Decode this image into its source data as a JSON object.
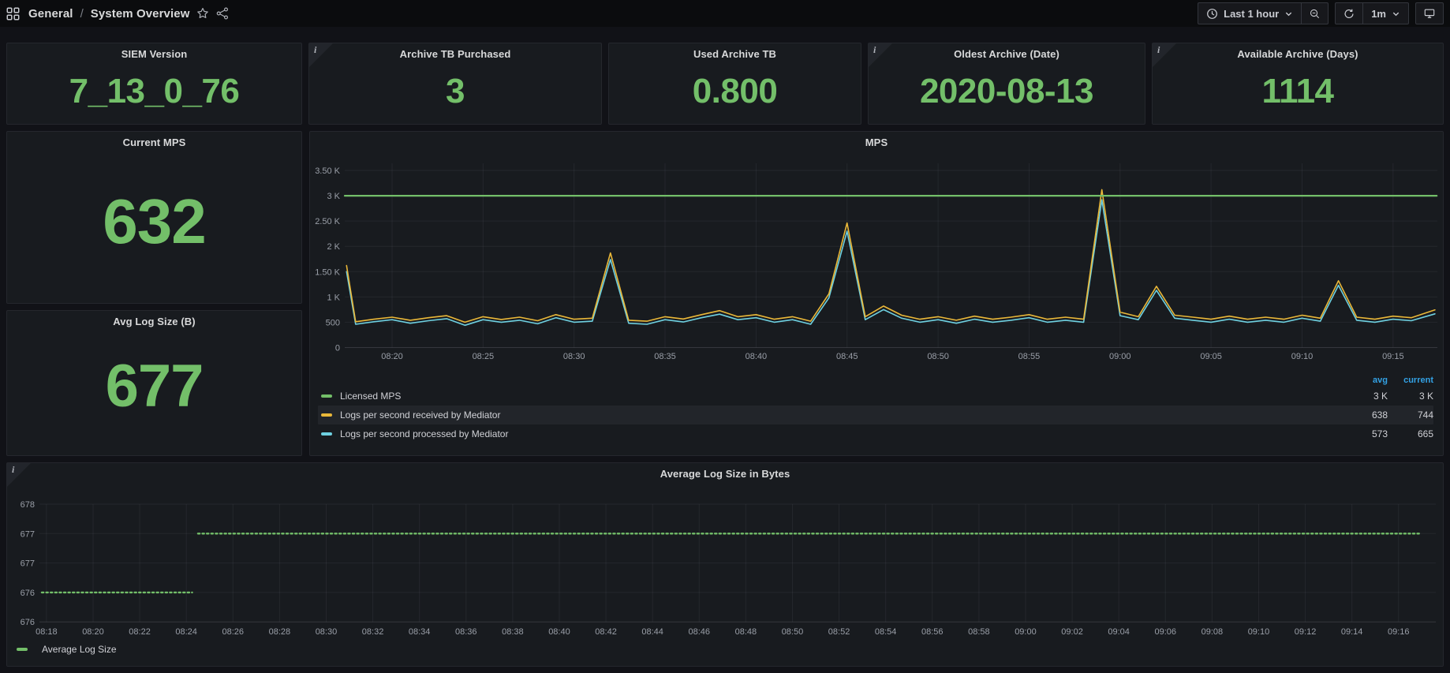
{
  "nav": {
    "breadcrumb": {
      "section": "General",
      "separator": "/",
      "page": "System Overview"
    },
    "controls": {
      "time_range": "Last 1 hour",
      "refresh_interval": "1m"
    }
  },
  "icons": {
    "info": "i"
  },
  "stats": [
    {
      "title": "SIEM Version",
      "value": "7_13_0_76",
      "info": false
    },
    {
      "title": "Archive TB Purchased",
      "value": "3",
      "info": true
    },
    {
      "title": "Used Archive TB",
      "value": "0.800",
      "info": false
    },
    {
      "title": "Oldest Archive (Date)",
      "value": "2020-08-13",
      "info": true
    },
    {
      "title": "Available Archive (Days)",
      "value": "1114",
      "info": true
    }
  ],
  "big_stats": {
    "current_mps": {
      "title": "Current MPS",
      "value": "632"
    },
    "avg_log_size": {
      "title": "Avg Log Size (B)",
      "value": "677"
    }
  },
  "colors": {
    "green": "#73bf69",
    "yellow": "#eab839",
    "cyan": "#6ed0e0",
    "legend_header_blue": "#33a2e5",
    "panel_bg": "#181b1f",
    "page_bg": "#111217"
  },
  "chart_data": [
    {
      "id": "mps",
      "type": "line",
      "title": "MPS",
      "time_domain": [
        "08:17",
        "09:17"
      ],
      "x_ticks": [
        "08:20",
        "08:25",
        "08:30",
        "08:35",
        "08:40",
        "08:45",
        "08:50",
        "08:55",
        "09:00",
        "09:05",
        "09:10",
        "09:15"
      ],
      "x_tick_start_min": 3,
      "x_tick_step_min": 5,
      "y_ticks": [
        "0",
        "500",
        "1 K",
        "1.50 K",
        "2 K",
        "2.50 K",
        "3 K",
        "3.50 K"
      ],
      "ylim": [
        0,
        3880
      ],
      "grid": true,
      "legend_position": "bottom",
      "legend_columns": [
        "avg",
        "current"
      ],
      "series": [
        {
          "name": "Licensed MPS",
          "color": "#73bf69",
          "width": 2.2,
          "avg": "3 K",
          "current": "3 K",
          "constant": 3000
        },
        {
          "name": "Logs per second received by Mediator",
          "color": "#eab839",
          "width": 1.6,
          "avg": "638",
          "current": "744",
          "highlight": true,
          "points": [
            [
              0.5,
              1620
            ],
            [
              1,
              510
            ],
            [
              2,
              560
            ],
            [
              3,
              600
            ],
            [
              4,
              540
            ],
            [
              5,
              590
            ],
            [
              6,
              630
            ],
            [
              7,
              500
            ],
            [
              8,
              610
            ],
            [
              9,
              555
            ],
            [
              10,
              600
            ],
            [
              11,
              530
            ],
            [
              12,
              650
            ],
            [
              13,
              560
            ],
            [
              14,
              580
            ],
            [
              15,
              1870
            ],
            [
              16,
              540
            ],
            [
              17,
              520
            ],
            [
              18,
              610
            ],
            [
              19,
              565
            ],
            [
              20,
              650
            ],
            [
              21,
              730
            ],
            [
              22,
              610
            ],
            [
              23,
              650
            ],
            [
              24,
              560
            ],
            [
              25,
              610
            ],
            [
              26,
              520
            ],
            [
              27,
              1060
            ],
            [
              28,
              2460
            ],
            [
              29,
              610
            ],
            [
              30,
              820
            ],
            [
              31,
              640
            ],
            [
              32,
              560
            ],
            [
              33,
              610
            ],
            [
              34,
              540
            ],
            [
              35,
              620
            ],
            [
              36,
              560
            ],
            [
              37,
              600
            ],
            [
              38,
              650
            ],
            [
              39,
              560
            ],
            [
              40,
              600
            ],
            [
              41,
              560
            ],
            [
              42,
              3120
            ],
            [
              43,
              700
            ],
            [
              44,
              610
            ],
            [
              45,
              1210
            ],
            [
              46,
              640
            ],
            [
              47,
              600
            ],
            [
              48,
              560
            ],
            [
              49,
              620
            ],
            [
              50,
              560
            ],
            [
              51,
              600
            ],
            [
              52,
              560
            ],
            [
              53,
              640
            ],
            [
              54,
              580
            ],
            [
              55,
              1320
            ],
            [
              56,
              600
            ],
            [
              57,
              560
            ],
            [
              58,
              620
            ],
            [
              59,
              590
            ],
            [
              60.3,
              744
            ]
          ]
        },
        {
          "name": "Logs per second processed by Mediator",
          "color": "#6ed0e0",
          "width": 1.6,
          "avg": "573",
          "current": "665",
          "points": [
            [
              0.5,
              1500
            ],
            [
              1,
              460
            ],
            [
              2,
              510
            ],
            [
              3,
              550
            ],
            [
              4,
              480
            ],
            [
              5,
              530
            ],
            [
              6,
              570
            ],
            [
              7,
              440
            ],
            [
              8,
              550
            ],
            [
              9,
              500
            ],
            [
              10,
              540
            ],
            [
              11,
              470
            ],
            [
              12,
              590
            ],
            [
              13,
              500
            ],
            [
              14,
              520
            ],
            [
              15,
              1740
            ],
            [
              16,
              480
            ],
            [
              17,
              460
            ],
            [
              18,
              550
            ],
            [
              19,
              505
            ],
            [
              20,
              590
            ],
            [
              21,
              660
            ],
            [
              22,
              550
            ],
            [
              23,
              590
            ],
            [
              24,
              500
            ],
            [
              25,
              550
            ],
            [
              26,
              460
            ],
            [
              27,
              980
            ],
            [
              28,
              2300
            ],
            [
              29,
              550
            ],
            [
              30,
              750
            ],
            [
              31,
              580
            ],
            [
              32,
              500
            ],
            [
              33,
              550
            ],
            [
              34,
              480
            ],
            [
              35,
              560
            ],
            [
              36,
              500
            ],
            [
              37,
              540
            ],
            [
              38,
              590
            ],
            [
              39,
              500
            ],
            [
              40,
              540
            ],
            [
              41,
              500
            ],
            [
              42,
              2920
            ],
            [
              43,
              630
            ],
            [
              44,
              550
            ],
            [
              45,
              1130
            ],
            [
              46,
              580
            ],
            [
              47,
              540
            ],
            [
              48,
              500
            ],
            [
              49,
              560
            ],
            [
              50,
              500
            ],
            [
              51,
              540
            ],
            [
              52,
              500
            ],
            [
              53,
              580
            ],
            [
              54,
              520
            ],
            [
              55,
              1230
            ],
            [
              56,
              540
            ],
            [
              57,
              500
            ],
            [
              58,
              560
            ],
            [
              59,
              530
            ],
            [
              60.3,
              665
            ]
          ]
        }
      ]
    },
    {
      "id": "avg_log_size",
      "type": "line",
      "line_style": "dotted",
      "title": "Average Log Size in Bytes",
      "time_domain": [
        "08:18",
        "09:17"
      ],
      "x_ticks": [
        "08:18",
        "08:20",
        "08:22",
        "08:24",
        "08:26",
        "08:28",
        "08:30",
        "08:32",
        "08:34",
        "08:36",
        "08:38",
        "08:40",
        "08:42",
        "08:44",
        "08:46",
        "08:48",
        "08:50",
        "08:52",
        "08:54",
        "08:56",
        "08:58",
        "09:00",
        "09:02",
        "09:04",
        "09:06",
        "09:08",
        "09:10",
        "09:12",
        "09:14",
        "09:16"
      ],
      "x_tick_start_min": 1,
      "x_tick_step_min": 2,
      "y_ticks": [
        "678",
        "677",
        "677",
        "676",
        "676"
      ],
      "y_tick_values": [
        678,
        677.5,
        677,
        676.5,
        676
      ],
      "grid": true,
      "legend_position": "bottom",
      "series": [
        {
          "name": "Average Log Size",
          "color": "#73bf69",
          "segments": [
            {
              "start": "08:18",
              "end": "08:24",
              "value": 676,
              "grid_row": 3,
              "from_t": 0.8,
              "to_t": 7.25
            },
            {
              "start": "08:25",
              "end": "09:17",
              "value": 677,
              "grid_row": 1,
              "from_t": 7.5,
              "to_t": 59.9
            }
          ]
        }
      ]
    }
  ]
}
